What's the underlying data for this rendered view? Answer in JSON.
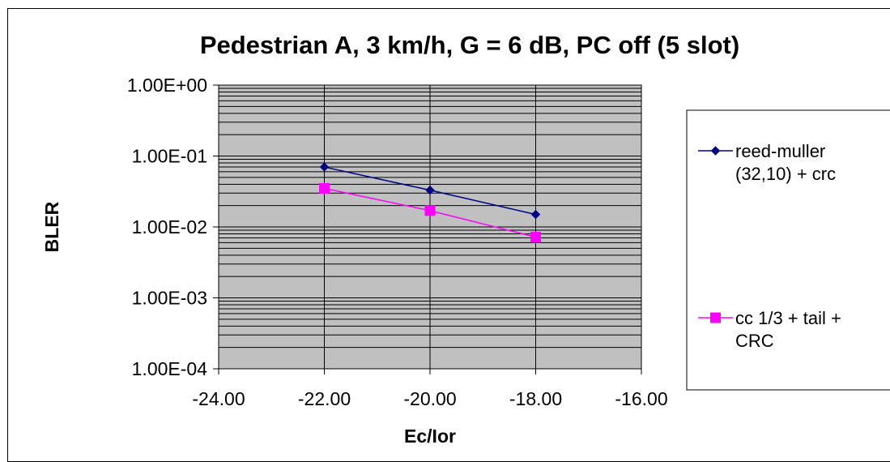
{
  "chart_data": {
    "type": "line",
    "title": "Pedestrian A, 3 km/h, G = 6 dB, PC off (5 slot)",
    "xlabel": "Ec/Ior",
    "ylabel": "BLER",
    "xlim": [
      -24,
      -16
    ],
    "x_ticks": [
      "-24.00",
      "-22.00",
      "-20.00",
      "-18.00",
      "-16.00"
    ],
    "ylim": [
      0.0001,
      1
    ],
    "y_scale": "log",
    "y_ticks": [
      "1.00E+00",
      "1.00E-01",
      "1.00E-02",
      "1.00E-03",
      "1.00E-04"
    ],
    "grid": true,
    "plot_background": "#c0c0c0",
    "legend_position": "right",
    "series": [
      {
        "name": "reed-muller (32,10) + crc",
        "legend_lines": [
          "reed-muller",
          "(32,10) + crc"
        ],
        "color": "#000080",
        "marker": "diamond",
        "x": [
          -22,
          -20,
          -18
        ],
        "y": [
          0.07,
          0.033,
          0.015
        ]
      },
      {
        "name": "cc 1/3 + tail + CRC",
        "legend_lines": [
          "cc 1/3 + tail +",
          "CRC"
        ],
        "color": "#ff00ff",
        "marker": "square",
        "x": [
          -22,
          -20,
          -18
        ],
        "y": [
          0.035,
          0.017,
          0.0072
        ]
      }
    ]
  }
}
